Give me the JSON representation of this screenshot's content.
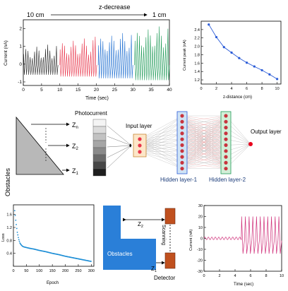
{
  "panel_a": {
    "label_left": "10 cm",
    "label_top": "z-decrease",
    "label_right": "1 cm",
    "ylabel": "Current (nA)",
    "xlabel": "Time (sec)",
    "yticks": [
      "-1",
      "0",
      "1",
      "2"
    ],
    "xticks": [
      "0",
      "5",
      "10",
      "15",
      "20",
      "25",
      "30",
      "35",
      "40"
    ],
    "series_colors": [
      "#222222",
      "#e8344a",
      "#1f6fd1",
      "#1e9a57"
    ]
  },
  "panel_b": {
    "ylabel": "Current peak (nA)",
    "xlabel": "z-distance (cm)",
    "yticks": [
      "1.2",
      "1.4",
      "1.6",
      "1.8",
      "2.0",
      "2.2",
      "2.4"
    ],
    "xticks": [
      "0",
      "2",
      "4",
      "6",
      "8",
      "10"
    ],
    "color": "#2a5bd7"
  },
  "panel_c": {
    "obstacles_label": "Obstacles",
    "photocurrent_label": "Photocurrent",
    "z_labels": [
      "Z",
      "Z",
      "Z"
    ],
    "z_subs": [
      "n",
      "2",
      "1"
    ],
    "input_layer": "Input layer",
    "hidden1": "Hidden layer-1",
    "hidden2": "Hidden layer-2",
    "output_layer": "Output layer"
  },
  "panel_d": {
    "ylabel": "Loss",
    "xlabel": "Epoch",
    "yticks": [
      "0.4",
      "0.8",
      "1.2",
      "1.6"
    ],
    "xticks": [
      "0",
      "50",
      "100",
      "150",
      "200",
      "250",
      "300"
    ],
    "color": "#1f8fd6"
  },
  "panel_e": {
    "obstacles_label": "Obstacles",
    "scanning_label": "Scanning",
    "detector_label": "Detector",
    "z2": "Z",
    "z2_sub": "2",
    "z1": "Z",
    "z1_sub": "1"
  },
  "panel_f": {
    "ylabel": "Current (nA)",
    "xlabel": "Time (sec)",
    "yticks": [
      "-30",
      "-20",
      "-10",
      "0",
      "10",
      "20",
      "30"
    ],
    "xticks": [
      "0",
      "2",
      "4",
      "6",
      "8",
      "10"
    ],
    "color": "#d0307a"
  },
  "chart_data": [
    {
      "type": "line",
      "title": "",
      "xlabel": "Time (sec)",
      "ylabel": "Current (nA)",
      "xlim": [
        0,
        40
      ],
      "ylim": [
        -1.2,
        2.5
      ],
      "series": [
        {
          "segment": [
            0,
            9
          ],
          "color": "#222222",
          "baseline": -0.05,
          "peak_low": 0.3,
          "peak_high": 1.2,
          "trough": -0.6,
          "period": 0.6
        },
        {
          "segment": [
            10,
            20
          ],
          "color": "#e8344a",
          "baseline": -0.05,
          "peak_low": 0.5,
          "peak_high": 1.6,
          "trough": -0.7,
          "period": 0.6
        },
        {
          "segment": [
            20.5,
            30
          ],
          "color": "#1f6fd1",
          "baseline": -0.05,
          "peak_low": 0.7,
          "peak_high": 1.9,
          "trough": -0.8,
          "period": 0.6
        },
        {
          "segment": [
            30.5,
            40
          ],
          "color": "#1e9a57",
          "baseline": -0.05,
          "peak_low": 0.9,
          "peak_high": 2.3,
          "trough": -0.9,
          "period": 0.6
        }
      ]
    },
    {
      "type": "line",
      "title": "",
      "xlabel": "z-distance (cm)",
      "ylabel": "Current peak (nA)",
      "xlim": [
        0,
        10.5
      ],
      "ylim": [
        1.1,
        2.6
      ],
      "x": [
        1,
        2,
        3,
        4,
        5,
        6,
        7,
        8,
        9,
        10
      ],
      "series": [
        {
          "values": [
            2.52,
            2.22,
            1.98,
            1.85,
            1.72,
            1.61,
            1.52,
            1.43,
            1.33,
            1.22
          ]
        }
      ]
    },
    {
      "type": "scatter",
      "title": "",
      "xlabel": "Epoch",
      "ylabel": "Loss",
      "xlim": [
        0,
        310
      ],
      "ylim": [
        0,
        1.9
      ],
      "x": [
        5,
        10,
        15,
        20,
        25,
        30,
        35,
        40,
        50,
        60,
        80,
        100,
        125,
        150,
        175,
        200,
        225,
        250,
        275,
        300
      ],
      "series": [
        {
          "values": [
            1.72,
            1.35,
            1.05,
            0.85,
            0.72,
            0.66,
            0.62,
            0.6,
            0.58,
            0.56,
            0.53,
            0.49,
            0.45,
            0.4,
            0.36,
            0.31,
            0.27,
            0.23,
            0.19,
            0.15
          ]
        }
      ]
    },
    {
      "type": "line",
      "title": "",
      "xlabel": "Time (sec)",
      "ylabel": "Current (nA)",
      "xlim": [
        0,
        10
      ],
      "ylim": [
        -30,
        30
      ],
      "series": [
        {
          "quiet_until": 4.8,
          "quiet_amp": 1.2,
          "peak": 20,
          "trough": -14,
          "period": 0.48,
          "start": 4.8,
          "end": 10
        }
      ]
    }
  ]
}
